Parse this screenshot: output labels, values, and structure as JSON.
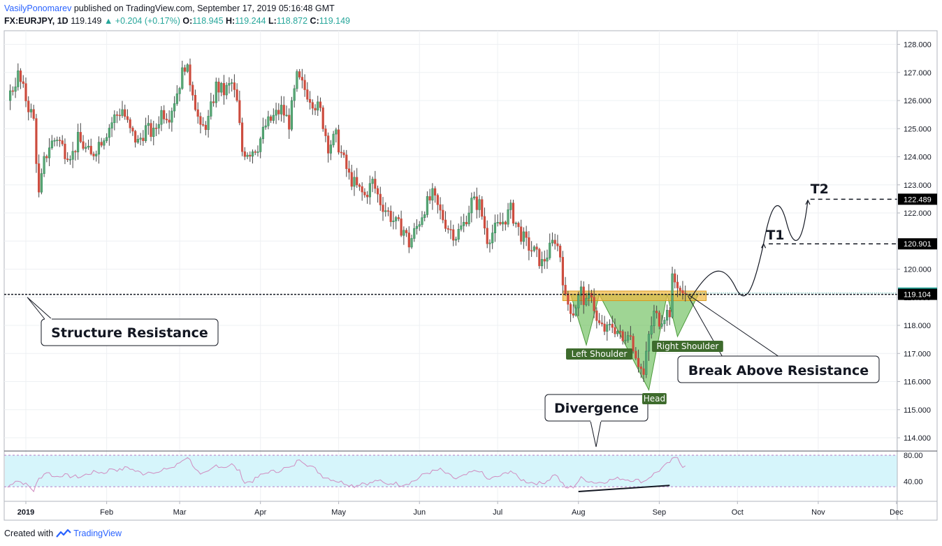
{
  "header": {
    "author": "VasilyPonomarev",
    "published_text": "published on TradingView.com, September 17, 2019 05:16:48 GMT",
    "symbol": "FX:EURJPY, 1D",
    "price": "119.149",
    "change": "▲ +0.204 (+0.17%)",
    "o_label": "O:",
    "o_value": "118.945",
    "h_label": "H:",
    "h_value": "119.244",
    "l_label": "L:",
    "l_value": "118.872",
    "c_label": "C:",
    "c_value": "119.149"
  },
  "footer": {
    "created_with": "Created with",
    "brand": "TradingView",
    "logo_icon": "tradingview-logo-icon"
  },
  "colors": {
    "up": "#2d8f5b",
    "down": "#d54c3c",
    "up_fill": "#5fa777",
    "down_fill": "#c94c3f",
    "pattern": "#6cbf5a",
    "zone": "#f0b840",
    "rsi_line": "#d08cc0",
    "rsi_band": "#d6f5fb"
  },
  "annotations": {
    "structure_resistance": "Structure Resistance",
    "break_above": "Break Above Resistance",
    "divergence": "Divergence",
    "left_shoulder": "Left Shoulder",
    "head": "Head",
    "right_shoulder": "Right Shoulder",
    "t1": "T1",
    "t2": "T2"
  },
  "chart_data": {
    "type": "candlestick",
    "symbol": "FX:EURJPY",
    "interval": "1D",
    "ylim": [
      113.6,
      128.35
    ],
    "y_ticks": [
      "128.000",
      "127.000",
      "126.000",
      "125.000",
      "124.000",
      "123.000",
      "122.000",
      "121.000",
      "120.000",
      "119.000",
      "118.000",
      "117.000",
      "116.000",
      "115.000",
      "114.000"
    ],
    "x_ticks": [
      {
        "label": "2019",
        "day": 0,
        "bold": true
      },
      {
        "label": "Feb",
        "day": 31
      },
      {
        "label": "Mar",
        "day": 59
      },
      {
        "label": "Apr",
        "day": 90
      },
      {
        "label": "May",
        "day": 120
      },
      {
        "label": "Jun",
        "day": 151
      },
      {
        "label": "Jul",
        "day": 181
      },
      {
        "label": "Aug",
        "day": 212
      },
      {
        "label": "Sep",
        "day": 243
      },
      {
        "label": "Oct",
        "day": 273
      },
      {
        "label": "Nov",
        "day": 304
      },
      {
        "label": "Dec",
        "day": 334
      }
    ],
    "price_labels": [
      {
        "value": 122.489,
        "text": "122.489"
      },
      {
        "value": 120.901,
        "text": "120.901"
      },
      {
        "value": 119.149,
        "text": "119.149",
        "current": true
      },
      {
        "value": 119.104,
        "text": "119.104"
      }
    ],
    "resistance_level": 119.104,
    "resistance_zone": [
      118.88,
      119.22
    ],
    "series_anchors": [
      [
        -7,
        126.0
      ],
      [
        -3,
        126.9
      ],
      [
        1,
        125.8
      ],
      [
        3,
        125.3
      ],
      [
        5,
        122.6
      ],
      [
        7,
        123.8
      ],
      [
        9,
        124.4
      ],
      [
        12,
        124.7
      ],
      [
        15,
        124.2
      ],
      [
        18,
        124.1
      ],
      [
        20,
        124.6
      ],
      [
        22,
        124.4
      ],
      [
        25,
        124.0
      ],
      [
        28,
        124.5
      ],
      [
        31,
        124.9
      ],
      [
        34,
        125.4
      ],
      [
        37,
        125.7
      ],
      [
        40,
        124.9
      ],
      [
        43,
        124.5
      ],
      [
        46,
        125.0
      ],
      [
        49,
        124.8
      ],
      [
        52,
        125.6
      ],
      [
        55,
        125.5
      ],
      [
        58,
        126.3
      ],
      [
        61,
        127.3
      ],
      [
        64,
        126.4
      ],
      [
        67,
        124.9
      ],
      [
        70,
        125.3
      ],
      [
        73,
        126.5
      ],
      [
        76,
        126.3
      ],
      [
        79,
        126.6
      ],
      [
        81,
        125.9
      ],
      [
        83,
        124.2
      ],
      [
        86,
        124.2
      ],
      [
        89,
        124.4
      ],
      [
        92,
        125.1
      ],
      [
        95,
        125.4
      ],
      [
        98,
        125.7
      ],
      [
        101,
        125.2
      ],
      [
        104,
        126.8
      ],
      [
        107,
        126.4
      ],
      [
        110,
        126.0
      ],
      [
        113,
        125.6
      ],
      [
        116,
        124.4
      ],
      [
        119,
        124.7
      ],
      [
        121,
        124.1
      ],
      [
        124,
        123.3
      ],
      [
        127,
        122.9
      ],
      [
        130,
        122.6
      ],
      [
        133,
        123.1
      ],
      [
        136,
        122.4
      ],
      [
        139,
        122.0
      ],
      [
        142,
        121.6
      ],
      [
        145,
        121.4
      ],
      [
        147,
        120.9
      ],
      [
        150,
        121.5
      ],
      [
        153,
        122.2
      ],
      [
        156,
        122.6
      ],
      [
        159,
        122.0
      ],
      [
        162,
        121.5
      ],
      [
        165,
        121.2
      ],
      [
        168,
        121.6
      ],
      [
        171,
        122.4
      ],
      [
        174,
        122.3
      ],
      [
        177,
        121.1
      ],
      [
        180,
        121.4
      ],
      [
        183,
        121.7
      ],
      [
        186,
        122.1
      ],
      [
        189,
        121.4
      ],
      [
        192,
        120.9
      ],
      [
        195,
        120.6
      ],
      [
        198,
        120.2
      ],
      [
        201,
        120.7
      ],
      [
        203,
        121.1
      ],
      [
        205,
        120.5
      ],
      [
        207,
        118.9
      ],
      [
        210,
        118.5
      ],
      [
        213,
        119.2
      ],
      [
        215,
        118.7
      ],
      [
        217,
        119.2
      ],
      [
        219,
        118.1
      ],
      [
        221,
        117.9
      ],
      [
        223,
        117.8
      ],
      [
        225,
        118.0
      ],
      [
        227,
        117.8
      ],
      [
        229,
        117.4
      ],
      [
        231,
        117.9
      ],
      [
        233,
        117.3
      ],
      [
        235,
        116.7
      ],
      [
        237,
        116.2
      ],
      [
        239,
        117.6
      ],
      [
        241,
        118.4
      ],
      [
        243,
        118.2
      ],
      [
        245,
        118.4
      ],
      [
        247,
        118.5
      ],
      [
        248,
        119.6
      ],
      [
        250,
        119.5
      ],
      [
        252,
        119.0
      ],
      [
        253,
        119.15
      ]
    ],
    "pattern": "inverse head and shoulders",
    "targets": [
      {
        "label": "T1",
        "value": 120.901
      },
      {
        "label": "T2",
        "value": 122.489
      }
    ],
    "rsi": {
      "levels": [
        "80.00",
        "40.00"
      ],
      "band": [
        30,
        70
      ],
      "ylim": [
        25,
        85
      ],
      "anchors": [
        [
          -7,
          31
        ],
        [
          -4,
          42
        ],
        [
          -1,
          38
        ],
        [
          1,
          33
        ],
        [
          3,
          26
        ],
        [
          5,
          44
        ],
        [
          8,
          55
        ],
        [
          11,
          47
        ],
        [
          14,
          50
        ],
        [
          17,
          48
        ],
        [
          21,
          47
        ],
        [
          24,
          52
        ],
        [
          27,
          55
        ],
        [
          30,
          53
        ],
        [
          33,
          60
        ],
        [
          36,
          57
        ],
        [
          39,
          62
        ],
        [
          42,
          56
        ],
        [
          45,
          52
        ],
        [
          48,
          56
        ],
        [
          51,
          53
        ],
        [
          54,
          60
        ],
        [
          57,
          62
        ],
        [
          60,
          72
        ],
        [
          62,
          78
        ],
        [
          64,
          66
        ],
        [
          67,
          49
        ],
        [
          70,
          54
        ],
        [
          73,
          65
        ],
        [
          76,
          62
        ],
        [
          79,
          66
        ],
        [
          82,
          55
        ],
        [
          84,
          38
        ],
        [
          87,
          41
        ],
        [
          90,
          49
        ],
        [
          93,
          55
        ],
        [
          96,
          55
        ],
        [
          99,
          60
        ],
        [
          102,
          61
        ],
        [
          105,
          75
        ],
        [
          108,
          66
        ],
        [
          111,
          59
        ],
        [
          114,
          48
        ],
        [
          117,
          44
        ],
        [
          120,
          40
        ],
        [
          123,
          37
        ],
        [
          126,
          33
        ],
        [
          129,
          38
        ],
        [
          132,
          37
        ],
        [
          135,
          42
        ],
        [
          138,
          36
        ],
        [
          141,
          38
        ],
        [
          144,
          35
        ],
        [
          147,
          38
        ],
        [
          150,
          43
        ],
        [
          153,
          52
        ],
        [
          156,
          55
        ],
        [
          159,
          58
        ],
        [
          162,
          50
        ],
        [
          165,
          44
        ],
        [
          168,
          48
        ],
        [
          171,
          54
        ],
        [
          174,
          57
        ],
        [
          177,
          43
        ],
        [
          180,
          46
        ],
        [
          183,
          50
        ],
        [
          186,
          57
        ],
        [
          189,
          45
        ],
        [
          192,
          40
        ],
        [
          195,
          38
        ],
        [
          198,
          37
        ],
        [
          201,
          44
        ],
        [
          203,
          52
        ],
        [
          205,
          41
        ],
        [
          207,
          30
        ],
        [
          210,
          32
        ],
        [
          213,
          45
        ],
        [
          216,
          41
        ],
        [
          219,
          38
        ],
        [
          222,
          40
        ],
        [
          225,
          43
        ],
        [
          228,
          45
        ],
        [
          231,
          43
        ],
        [
          234,
          42
        ],
        [
          237,
          40
        ],
        [
          240,
          49
        ],
        [
          243,
          57
        ],
        [
          246,
          66
        ],
        [
          248,
          73
        ],
        [
          250,
          77
        ],
        [
          252,
          63
        ],
        [
          253,
          66
        ]
      ],
      "divergence_line": [
        [
          212,
          29
        ],
        [
          247,
          34
        ]
      ]
    },
    "divergence_line_price": [
      [
        245,
        119.2
      ],
      [
        246,
        119.0
      ]
    ],
    "grid": true,
    "legend": "none"
  }
}
